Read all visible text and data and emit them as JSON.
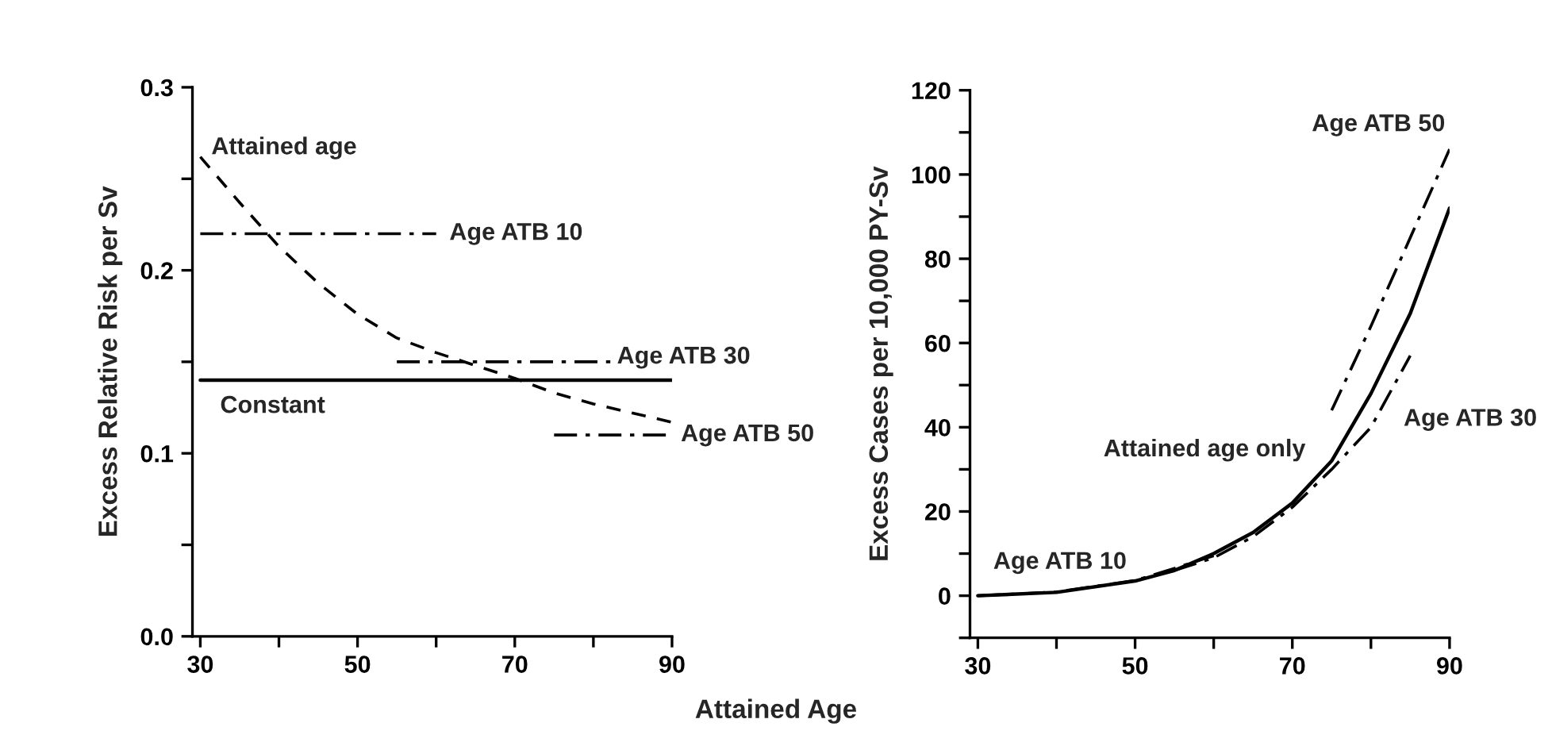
{
  "chart_data": [
    {
      "type": "line",
      "xlabel": "Attained Age",
      "ylabel": "Excess Relative Risk per Sv",
      "xlim": [
        29,
        90
      ],
      "ylim": [
        0,
        0.3
      ],
      "xticks": [
        30,
        {
          "value": 40,
          "label": null
        },
        50,
        {
          "value": 60,
          "label": null
        },
        70,
        {
          "value": 80,
          "label": null
        },
        90
      ],
      "yticks": [
        {
          "value": 0,
          "label": "0.0"
        },
        {
          "value": 0.05,
          "label": null
        },
        0.1,
        {
          "value": 0.15,
          "label": null
        },
        0.2,
        {
          "value": 0.25,
          "label": null
        },
        0.3
      ],
      "grid": false,
      "legend": false,
      "marker": "none",
      "series": [
        {
          "name": "Attained age",
          "color": "#000000",
          "line_style": "dashed",
          "x": [
            30,
            35,
            40,
            45,
            50,
            55,
            60,
            65,
            70,
            75,
            80,
            85,
            90
          ],
          "values": [
            0.262,
            0.237,
            0.213,
            0.193,
            0.176,
            0.163,
            0.155,
            0.148,
            0.141,
            0.133,
            0.127,
            0.122,
            0.117
          ]
        },
        {
          "name": "Constant",
          "color": "#000000",
          "line_style": "solid",
          "x": [
            30,
            90
          ],
          "values": [
            0.14,
            0.14
          ]
        },
        {
          "name": "Age ATB 10",
          "color": "#000000",
          "line_style": "dashdot",
          "x": [
            30,
            60
          ],
          "values": [
            0.22,
            0.22
          ]
        },
        {
          "name": "Age ATB 30",
          "color": "#000000",
          "line_style": "dashdot",
          "x": [
            55,
            83
          ],
          "values": [
            0.15,
            0.15
          ]
        },
        {
          "name": "Age ATB 50",
          "color": "#000000",
          "line_style": "dashdot",
          "x": [
            75,
            90
          ],
          "values": [
            0.11,
            0.11
          ]
        }
      ]
    },
    {
      "type": "line",
      "ylabel": "Excess Cases per 10,000 PY-Sv",
      "xlim": [
        29,
        90
      ],
      "ylim": [
        -10,
        120
      ],
      "xticks": [
        30,
        {
          "value": 40,
          "label": null
        },
        50,
        {
          "value": 60,
          "label": null
        },
        70,
        {
          "value": 80,
          "label": null
        },
        90
      ],
      "yticks": [
        {
          "value": -10,
          "label": null
        },
        0,
        {
          "value": 10,
          "label": null
        },
        20,
        {
          "value": 30,
          "label": null
        },
        40,
        {
          "value": 50,
          "label": null
        },
        60,
        {
          "value": 70,
          "label": null
        },
        80,
        {
          "value": 90,
          "label": null
        },
        100,
        {
          "value": 110,
          "label": null
        },
        120
      ],
      "grid": false,
      "legend": false,
      "marker": "none",
      "series": [
        {
          "name": "Attained age only",
          "color": "#000000",
          "line_style": "solid",
          "x": [
            30,
            40,
            50,
            55,
            60,
            65,
            70,
            75,
            80,
            85,
            90
          ],
          "values": [
            0,
            0.8,
            3.5,
            6,
            10,
            15,
            22,
            32,
            48,
            67,
            92
          ]
        },
        {
          "name": "Age ATB 10",
          "color": "#000000",
          "line_style": "dashdot",
          "x": [
            30,
            40,
            50,
            55,
            60
          ],
          "values": [
            0,
            0.9,
            3.6,
            6.5,
            9.5
          ]
        },
        {
          "name": "Age ATB 30",
          "color": "#000000",
          "line_style": "dashdot",
          "x": [
            55,
            60,
            65,
            70,
            75,
            80,
            85
          ],
          "values": [
            6,
            9,
            14,
            21,
            30,
            40,
            57
          ]
        },
        {
          "name": "Age ATB 50",
          "color": "#000000",
          "line_style": "dashdot",
          "x": [
            75,
            80,
            85,
            90
          ],
          "values": [
            44,
            64,
            85,
            106
          ]
        }
      ]
    }
  ]
}
